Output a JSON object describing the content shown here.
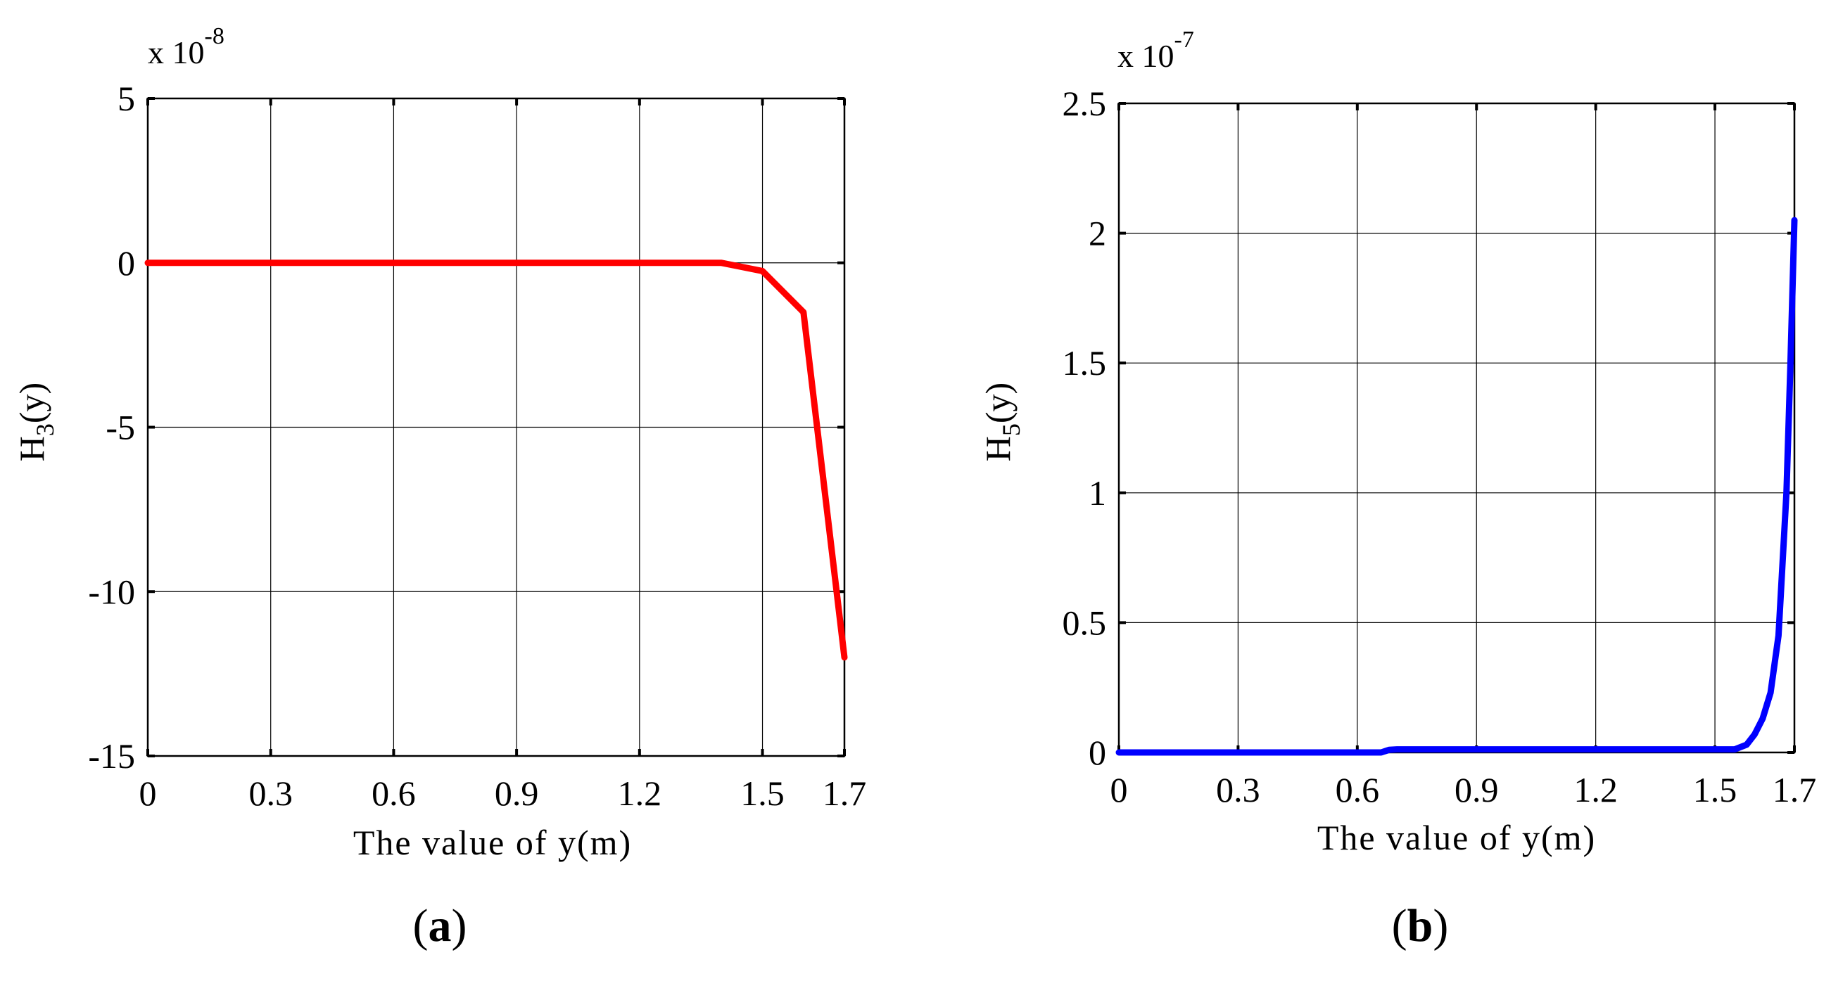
{
  "chart_data": [
    {
      "type": "line",
      "panel": "a",
      "caption_letter": "a",
      "xlabel": "The value of y(m)",
      "ylabel_main": "H",
      "ylabel_sub": "3",
      "ylabel_tail": "(y)",
      "exponent_prefix": "x 10",
      "exponent_power": "-8",
      "xlim": [
        0,
        1.7
      ],
      "ylim": [
        -15,
        5
      ],
      "xticks": [
        0,
        0.3,
        0.6,
        0.9,
        1.2,
        1.5,
        1.7
      ],
      "xtick_labels": [
        "0",
        "0.3",
        "0.6",
        "0.9",
        "1.2",
        "1.5",
        "1.7"
      ],
      "yticks": [
        5,
        0,
        -5,
        -10,
        -15
      ],
      "ytick_labels": [
        "5",
        "0",
        "-5",
        "-10",
        "-15"
      ],
      "grid": true,
      "series": [
        {
          "name": "H3(y)",
          "color": "#ff0000",
          "x": [
            0,
            0.3,
            0.6,
            0.9,
            1.2,
            1.4,
            1.5,
            1.6,
            1.7
          ],
          "y": [
            0,
            0,
            0,
            0,
            0,
            0,
            -0.25,
            -1.5,
            -12
          ]
        }
      ]
    },
    {
      "type": "line",
      "panel": "b",
      "caption_letter": "b",
      "xlabel": "The value of y(m)",
      "ylabel_main": "H",
      "ylabel_sub": "5",
      "ylabel_tail": "(y)",
      "exponent_prefix": "x 10",
      "exponent_power": "-7",
      "xlim": [
        0,
        1.7
      ],
      "ylim": [
        0,
        2.5
      ],
      "xticks": [
        0,
        0.3,
        0.6,
        0.9,
        1.2,
        1.5,
        1.7
      ],
      "xtick_labels": [
        "0",
        "0.3",
        "0.6",
        "0.9",
        "1.2",
        "1.5",
        "1.7"
      ],
      "yticks": [
        2.5,
        2,
        1.5,
        1,
        0.5,
        0
      ],
      "ytick_labels": [
        "2.5",
        "2",
        "1.5",
        "1",
        "0.5",
        "0"
      ],
      "grid": true,
      "series": [
        {
          "name": "H5(y)",
          "color": "#0000ff",
          "x": [
            0,
            0.6,
            0.66,
            0.68,
            0.7,
            1.0,
            1.3,
            1.55,
            1.58,
            1.6,
            1.62,
            1.64,
            1.66,
            1.68,
            1.69,
            1.7
          ],
          "y": [
            0,
            0,
            0.0,
            0.01,
            0.012,
            0.012,
            0.012,
            0.012,
            0.03,
            0.07,
            0.13,
            0.23,
            0.45,
            1.0,
            1.5,
            2.05
          ]
        }
      ]
    }
  ]
}
